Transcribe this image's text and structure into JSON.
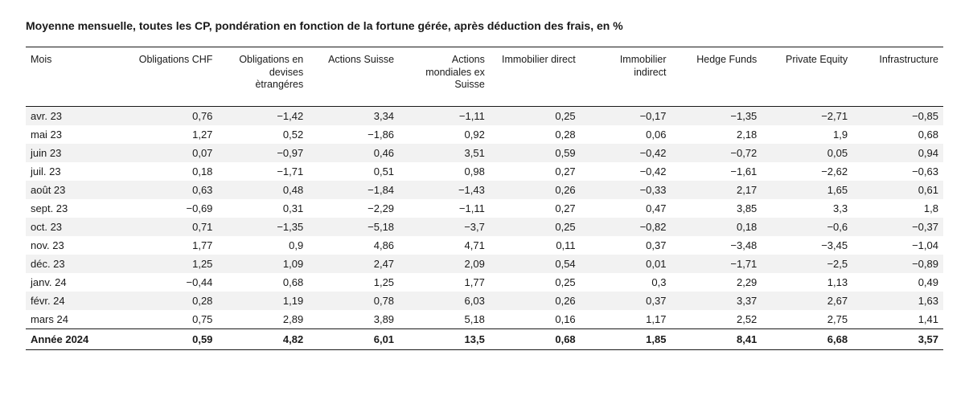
{
  "title": "Moyenne mensuelle, toutes les CP, pondération en fonction de la fortune gérée, après déduction des frais, en %",
  "table": {
    "type": "table",
    "background_color": "#ffffff",
    "stripe_color": "#f2f2f2",
    "border_color": "#1a1a1a",
    "text_color": "#1a1a1a",
    "header_fontsize": 12.5,
    "body_fontsize": 13,
    "title_fontsize": 14,
    "columns": [
      {
        "key": "mois",
        "label": "Mois",
        "align": "left"
      },
      {
        "key": "oblCHF",
        "label": "Obligations CHF",
        "align": "right"
      },
      {
        "key": "oblDev",
        "label": "Obligations en devises ètrangéres",
        "align": "right"
      },
      {
        "key": "actCH",
        "label": "Actions Suisse",
        "align": "right"
      },
      {
        "key": "actMon",
        "label": "Actions mondiales ex Suisse",
        "align": "right"
      },
      {
        "key": "immDir",
        "label": "Immobilier direct",
        "align": "right"
      },
      {
        "key": "immInd",
        "label": "Immobilier indirect",
        "align": "right"
      },
      {
        "key": "hedge",
        "label": "Hedge Funds",
        "align": "right"
      },
      {
        "key": "pe",
        "label": "Private Equity",
        "align": "right"
      },
      {
        "key": "infra",
        "label": "Infrastructure",
        "align": "right"
      }
    ],
    "rows": [
      {
        "stripe": true,
        "cells": [
          "avr. 23",
          "0,76",
          "−1,42",
          "3,34",
          "−1,11",
          "0,25",
          "−0,17",
          "−1,35",
          "−2,71",
          "−0,85"
        ]
      },
      {
        "stripe": false,
        "cells": [
          "mai 23",
          "1,27",
          "0,52",
          "−1,86",
          "0,92",
          "0,28",
          "0,06",
          "2,18",
          "1,9",
          "0,68"
        ]
      },
      {
        "stripe": true,
        "cells": [
          "juin 23",
          "0,07",
          "−0,97",
          "0,46",
          "3,51",
          "0,59",
          "−0,42",
          "−0,72",
          "0,05",
          "0,94"
        ]
      },
      {
        "stripe": false,
        "cells": [
          "juil. 23",
          "0,18",
          "−1,71",
          "0,51",
          "0,98",
          "0,27",
          "−0,42",
          "−1,61",
          "−2,62",
          "−0,63"
        ]
      },
      {
        "stripe": true,
        "cells": [
          "août 23",
          "0,63",
          "0,48",
          "−1,84",
          "−1,43",
          "0,26",
          "−0,33",
          "2,17",
          "1,65",
          "0,61"
        ]
      },
      {
        "stripe": false,
        "cells": [
          "sept. 23",
          "−0,69",
          "0,31",
          "−2,29",
          "−1,11",
          "0,27",
          "0,47",
          "3,85",
          "3,3",
          "1,8"
        ]
      },
      {
        "stripe": true,
        "cells": [
          "oct. 23",
          "0,71",
          "−1,35",
          "−5,18",
          "−3,7",
          "0,25",
          "−0,82",
          "0,18",
          "−0,6",
          "−0,37"
        ]
      },
      {
        "stripe": false,
        "cells": [
          "nov. 23",
          "1,77",
          "0,9",
          "4,86",
          "4,71",
          "0,11",
          "0,37",
          "−3,48",
          "−3,45",
          "−1,04"
        ]
      },
      {
        "stripe": true,
        "cells": [
          "déc. 23",
          "1,25",
          "1,09",
          "2,47",
          "2,09",
          "0,54",
          "0,01",
          "−1,71",
          "−2,5",
          "−0,89"
        ]
      },
      {
        "stripe": false,
        "cells": [
          "janv. 24",
          "−0,44",
          "0,68",
          "1,25",
          "1,77",
          "0,25",
          "0,3",
          "2,29",
          "1,13",
          "0,49"
        ]
      },
      {
        "stripe": true,
        "cells": [
          "févr. 24",
          "0,28",
          "1,19",
          "0,78",
          "6,03",
          "0,26",
          "0,37",
          "3,37",
          "2,67",
          "1,63"
        ]
      },
      {
        "stripe": false,
        "cells": [
          "mars 24",
          "0,75",
          "2,89",
          "3,89",
          "5,18",
          "0,16",
          "1,17",
          "2,52",
          "2,75",
          "1,41"
        ]
      }
    ],
    "total_row": {
      "cells": [
        "Année 2024",
        "0,59",
        "4,82",
        "6,01",
        "13,5",
        "0,68",
        "1,85",
        "8,41",
        "6,68",
        "3,57"
      ]
    }
  }
}
